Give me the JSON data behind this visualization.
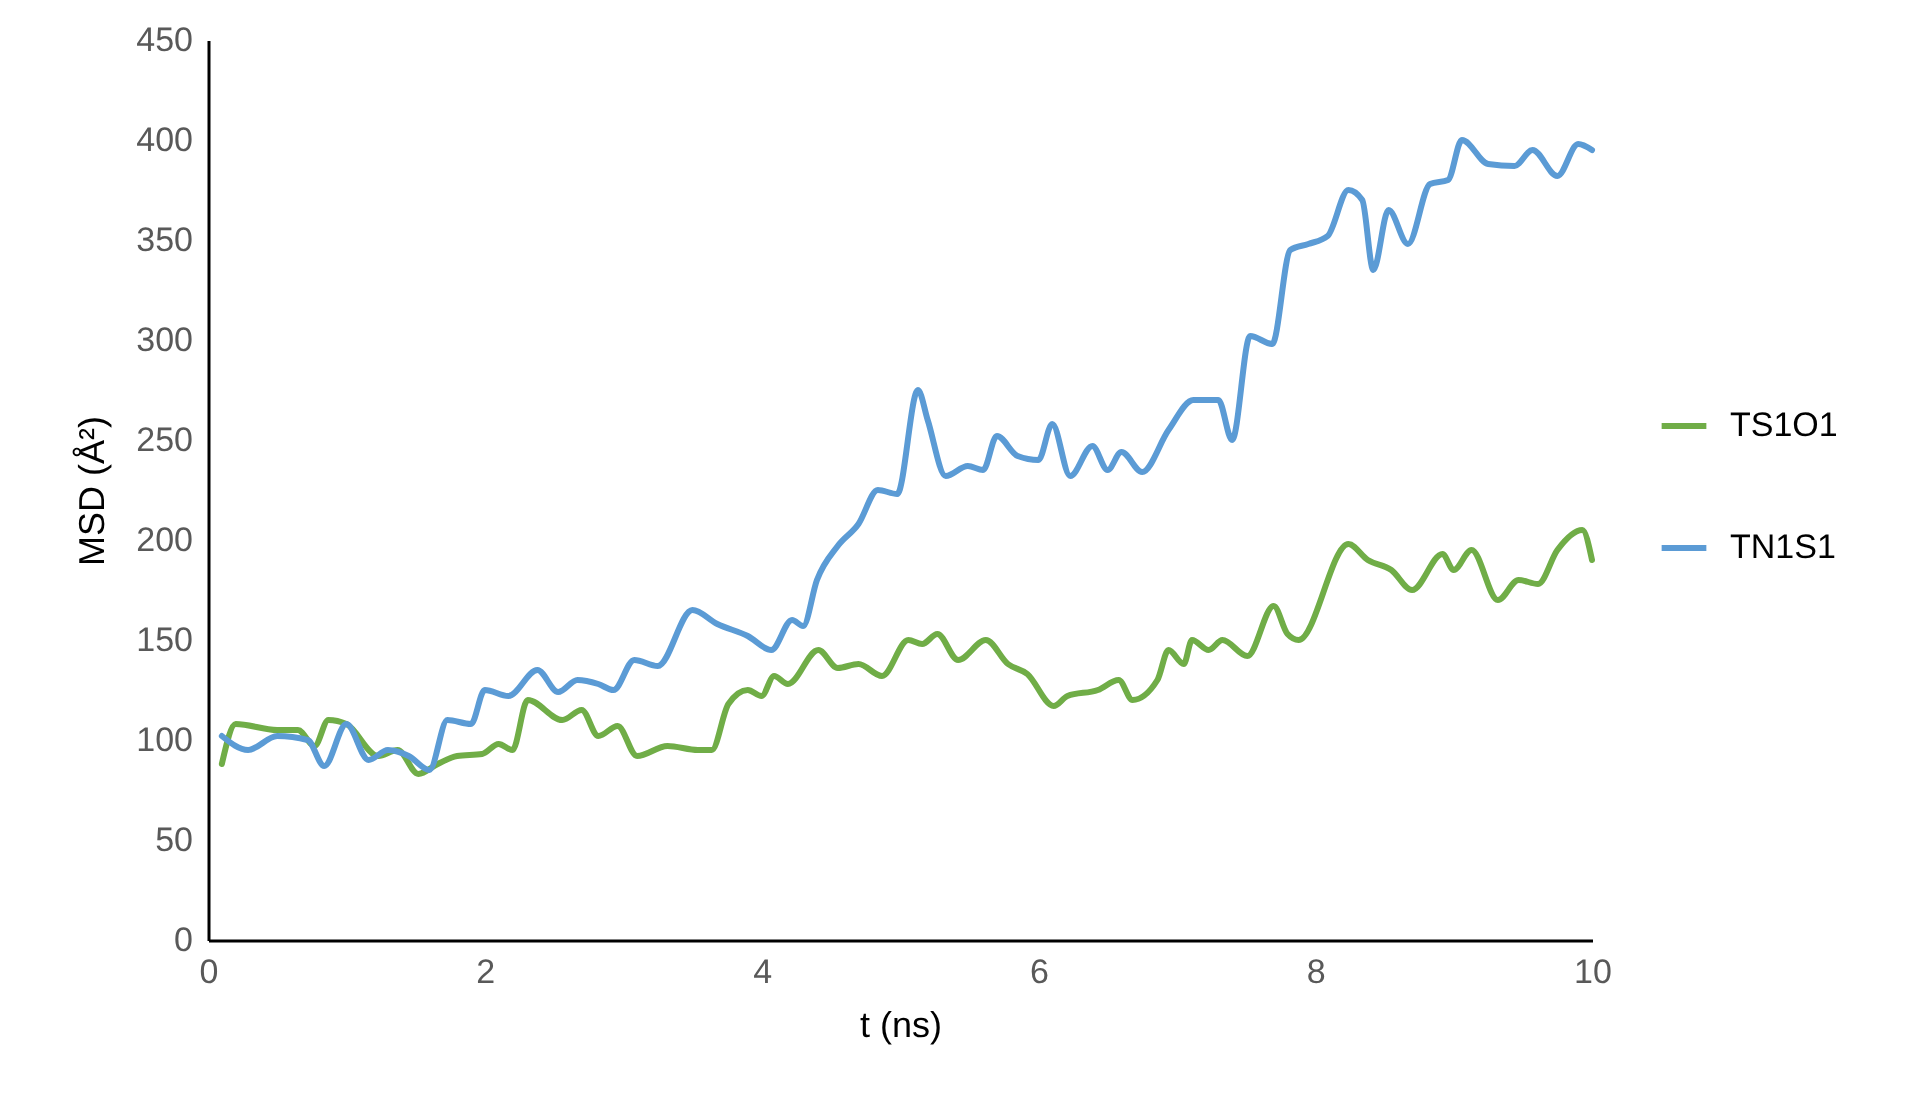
{
  "chart_data": {
    "type": "line",
    "xlabel": "t (ns)",
    "ylabel": "MSD (Å²)",
    "xlim": [
      0,
      10
    ],
    "ylim": [
      0,
      450
    ],
    "xticks": [
      0,
      2,
      4,
      6,
      8,
      10
    ],
    "yticks": [
      0,
      50,
      100,
      150,
      200,
      250,
      300,
      350,
      400,
      450
    ],
    "grid": false,
    "legend": "right",
    "marker": "none",
    "series": [
      {
        "name": "TS1O1",
        "color": "#70ad47",
        "x": [
          0.1,
          0.2,
          0.5,
          0.65,
          0.77,
          0.87,
          1.0,
          1.23,
          1.37,
          1.52,
          1.66,
          1.8,
          1.98,
          2.1,
          2.2,
          2.31,
          2.56,
          2.7,
          2.82,
          2.96,
          3.1,
          3.32,
          3.54,
          3.64,
          3.76,
          3.9,
          4.0,
          4.09,
          4.19,
          4.41,
          4.55,
          4.7,
          4.87,
          5.06,
          5.16,
          5.27,
          5.42,
          5.62,
          5.78,
          5.92,
          6.11,
          6.21,
          6.43,
          6.58,
          6.68,
          6.86,
          6.94,
          7.05,
          7.11,
          7.23,
          7.33,
          7.51,
          7.7,
          7.8,
          7.88,
          8.24,
          8.38,
          8.55,
          8.7,
          8.92,
          9.0,
          9.13,
          9.32,
          9.47,
          9.61,
          9.75,
          9.93,
          10.0
        ],
        "values": [
          88,
          108,
          105,
          105,
          97,
          110,
          108,
          92,
          95,
          83,
          88,
          92,
          93,
          98,
          95,
          120,
          110,
          115,
          102,
          107,
          92,
          97,
          95,
          95,
          118,
          125,
          122,
          132,
          128,
          145,
          136,
          138,
          132,
          150,
          148,
          153,
          140,
          150,
          138,
          133,
          117,
          122,
          125,
          130,
          120,
          130,
          145,
          138,
          150,
          145,
          150,
          142,
          167,
          153,
          150,
          198,
          190,
          185,
          175,
          193,
          185,
          195,
          170,
          180,
          178,
          195,
          205,
          190
        ]
      },
      {
        "name": "TN1S1",
        "color": "#5b9bd5",
        "x": [
          0.1,
          0.29,
          0.5,
          0.72,
          0.84,
          1.0,
          1.16,
          1.3,
          1.45,
          1.6,
          1.73,
          1.9,
          2.0,
          2.17,
          2.38,
          2.53,
          2.67,
          2.82,
          2.93,
          3.08,
          3.25,
          3.5,
          3.68,
          3.9,
          4.07,
          4.22,
          4.3,
          4.4,
          4.55,
          4.7,
          4.84,
          4.98,
          5.13,
          5.2,
          5.33,
          5.49,
          5.6,
          5.7,
          5.85,
          6.0,
          6.1,
          6.23,
          6.39,
          6.5,
          6.6,
          6.75,
          6.94,
          7.12,
          7.3,
          7.4,
          7.53,
          7.69,
          7.82,
          7.95,
          8.09,
          8.24,
          8.34,
          8.42,
          8.53,
          8.67,
          8.83,
          8.96,
          9.06,
          9.25,
          9.44,
          9.57,
          9.75,
          9.9,
          10.0
        ],
        "values": [
          102,
          95,
          102,
          100,
          87,
          108,
          90,
          95,
          92,
          85,
          110,
          108,
          125,
          122,
          135,
          124,
          130,
          128,
          125,
          140,
          137,
          165,
          158,
          152,
          145,
          160,
          157,
          180,
          197,
          208,
          225,
          223,
          275,
          260,
          232,
          237,
          235,
          252,
          242,
          240,
          258,
          232,
          247,
          235,
          244,
          234,
          255,
          270,
          270,
          250,
          302,
          298,
          345,
          348,
          352,
          375,
          370,
          335,
          365,
          348,
          378,
          380,
          400,
          388,
          387,
          395,
          382,
          398,
          395
        ]
      }
    ]
  }
}
